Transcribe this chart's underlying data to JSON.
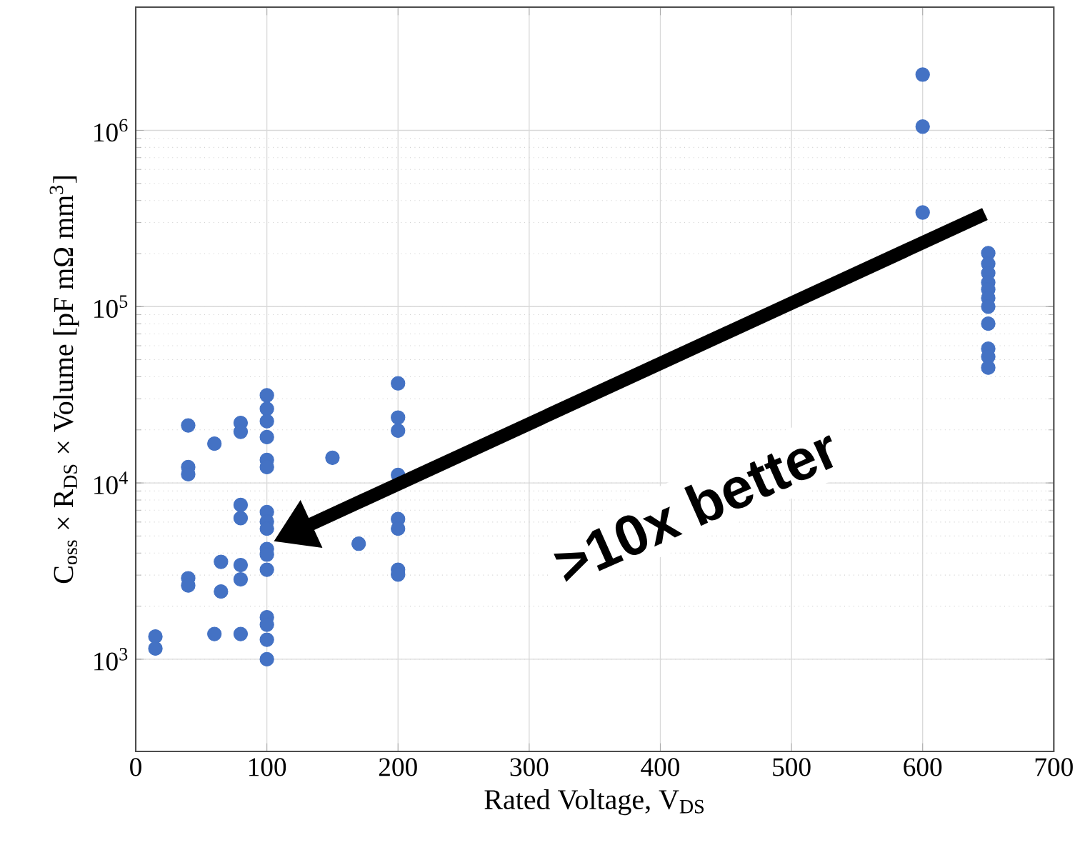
{
  "chart_data": {
    "type": "scatter",
    "xlabel": "Rated Voltage, V$_{DS}$",
    "ylabel": "C$_{oss}$ × R$_{DS}$ × Volume [pF mΩ mm$^{3}$]",
    "x": [
      15,
      15,
      40,
      40,
      40,
      40,
      40,
      60,
      60,
      65,
      65,
      80,
      80,
      80,
      80,
      80,
      80,
      80,
      100,
      100,
      100,
      100,
      100,
      100,
      100,
      100,
      100,
      100,
      100,
      100,
      100,
      100,
      100,
      100,
      150,
      170,
      200,
      200,
      200,
      200,
      200,
      200,
      200,
      200,
      600,
      600,
      600,
      650,
      650,
      650,
      650,
      650,
      650,
      650,
      650,
      650,
      650,
      650
    ],
    "values": [
      1345,
      1150,
      21200,
      12300,
      11200,
      2880,
      2620,
      16700,
      1390,
      3570,
      2420,
      21900,
      19500,
      7500,
      6310,
      3420,
      2840,
      1390,
      31400,
      26300,
      22400,
      18200,
      13500,
      12300,
      6840,
      6040,
      5500,
      4220,
      3920,
      3220,
      1730,
      1570,
      1290,
      1000,
      13900,
      4520,
      36700,
      23500,
      19800,
      11100,
      6240,
      5500,
      3220,
      3020,
      2070000,
      1050000,
      342000,
      201000,
      175000,
      155000,
      137000,
      125000,
      112000,
      100000,
      80000,
      57700,
      51900,
      45100
    ],
    "color": "#4472c4",
    "marker": "circle",
    "log": "y",
    "grid": true,
    "xlim": [
      0,
      700
    ],
    "xticks": [
      0,
      100,
      200,
      300,
      400,
      500,
      600,
      700
    ],
    "ylim": [
      300,
      5000000
    ],
    "yticks": [
      {
        "value": 1000,
        "label": "10$^{3}$"
      },
      {
        "value": 10000,
        "label": "10$^{4}$"
      },
      {
        "value": 100000,
        "label": "10$^{5}$"
      },
      {
        "value": 1000000,
        "label": "10$^{6}$"
      }
    ],
    "annotations": [
      ">10x better"
    ]
  }
}
